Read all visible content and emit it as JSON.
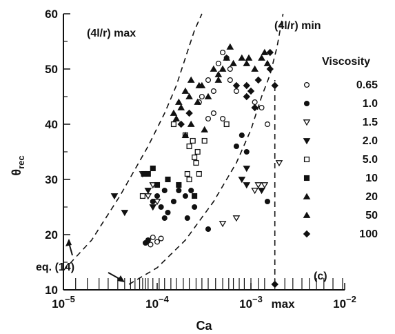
{
  "chart_data": {
    "type": "scatter",
    "title": "",
    "panel_label": "(c)",
    "xlabel": "Ca",
    "ylabel_main": "θ",
    "ylabel_sub": "rec",
    "xscale": "log",
    "xlim": [
      1e-05,
      0.01
    ],
    "ylim": [
      10,
      60
    ],
    "x_ticks": [
      {
        "value": 1e-05,
        "base": "10",
        "exp": "−5"
      },
      {
        "value": 0.0001,
        "base": "10",
        "exp": "−4"
      },
      {
        "value": 0.001,
        "base": "10",
        "exp": "−3"
      },
      {
        "value": 0.01,
        "base": "10",
        "exp": "−2"
      }
    ],
    "y_ticks": [
      10,
      20,
      30,
      40,
      50,
      60
    ],
    "extra_x_label": {
      "text": "max",
      "x": 0.0022
    },
    "annotations": [
      {
        "text": "(4l/r) max"
      },
      {
        "text": "(4l/r) min"
      },
      {
        "text": "eq. (14)"
      }
    ],
    "legend": {
      "title": "Viscosity",
      "placement": "right"
    },
    "curves": [
      {
        "name": "(4l/r) max",
        "style": "dashed",
        "points": [
          [
            1e-05,
            13.5
          ],
          [
            2e-05,
            19
          ],
          [
            4e-05,
            27
          ],
          [
            8e-05,
            36
          ],
          [
            0.00012,
            42
          ],
          [
            0.00016,
            47
          ],
          [
            0.0002,
            52
          ],
          [
            0.00025,
            57
          ],
          [
            0.0003,
            60
          ]
        ]
      },
      {
        "name": "(4l/r) min",
        "style": "dashed",
        "points": [
          [
            5e-05,
            11
          ],
          [
            0.0001,
            14
          ],
          [
            0.0002,
            19
          ],
          [
            0.0004,
            26
          ],
          [
            0.0007,
            33
          ],
          [
            0.001,
            39
          ],
          [
            0.0013,
            45
          ],
          [
            0.0016,
            49
          ],
          [
            0.0019,
            54
          ],
          [
            0.0022,
            60
          ]
        ]
      },
      {
        "name": "max",
        "style": "dashed",
        "points": [
          [
            0.0018,
            11
          ],
          [
            0.0018,
            48
          ]
        ]
      }
    ],
    "rug_x": [
      1.35e-05,
      1.8e-05,
      2.4e-05,
      3e-05,
      3.8e-05,
      4.5e-05,
      5.2e-05,
      5.8e-05,
      6.5e-05,
      7e-05,
      7.5e-05,
      8e-05,
      9e-05,
      0.000105,
      0.00012,
      0.00014,
      0.00016,
      0.00019,
      0.00022,
      0.00026,
      0.0003,
      0.00035,
      0.00042,
      0.0005,
      0.00058,
      0.00065,
      0.00075,
      0.00085,
      0.001,
      0.0012,
      0.0014,
      0.0018,
      0.0023,
      0.0028,
      0.0035,
      0.0042,
      0.005,
      0.006,
      0.0075,
      0.0095
    ],
    "series": [
      {
        "name": "0.65",
        "marker": "circle-open",
        "points": [
          [
            9e-05,
            19.5
          ],
          [
            0.0001,
            18.7
          ],
          [
            0.00011,
            19.3
          ],
          [
            8.5e-05,
            18.2
          ],
          [
            0.0003,
            45
          ],
          [
            0.00035,
            48
          ],
          [
            0.0004,
            46
          ],
          [
            0.00045,
            51
          ],
          [
            0.0005,
            53
          ],
          [
            0.00055,
            52
          ],
          [
            0.0006,
            50
          ],
          [
            0.0007,
            46
          ],
          [
            0.0005,
            41
          ],
          [
            0.0004,
            42
          ],
          [
            0.00035,
            41
          ],
          [
            0.0011,
            44
          ],
          [
            0.0013,
            43
          ],
          [
            0.0015,
            40
          ],
          [
            0.00028,
            44
          ],
          [
            0.0006,
            48
          ]
        ]
      },
      {
        "name": "1.0",
        "marker": "circle-filled",
        "points": [
          [
            7.5e-05,
            18.5
          ],
          [
            8e-05,
            19
          ],
          [
            0.0001,
            27
          ],
          [
            0.00011,
            25
          ],
          [
            0.00012,
            23
          ],
          [
            0.00013,
            24
          ],
          [
            0.00015,
            26
          ],
          [
            0.00017,
            28
          ],
          [
            0.0002,
            27
          ],
          [
            0.00023,
            28
          ],
          [
            9e-05,
            26
          ],
          [
            0.00021,
            23
          ],
          [
            0.00025,
            25
          ],
          [
            0.00035,
            21
          ],
          [
            0.0015,
            26
          ],
          [
            0.0007,
            36
          ],
          [
            0.0008,
            38
          ],
          [
            0.0009,
            35
          ],
          [
            0.00012,
            28
          ]
        ]
      },
      {
        "name": "1.5",
        "marker": "tri-down-open",
        "points": [
          [
            7e-05,
            31
          ],
          [
            8e-05,
            27
          ],
          [
            0.0001,
            26
          ],
          [
            0.0012,
            29
          ],
          [
            0.0014,
            29
          ],
          [
            0.002,
            33
          ],
          [
            0.0007,
            23
          ],
          [
            0.0005,
            22
          ],
          [
            0.0011,
            28
          ],
          [
            9e-05,
            29
          ]
        ]
      },
      {
        "name": "2.0",
        "marker": "tri-down-filled",
        "points": [
          [
            3.5e-05,
            27
          ],
          [
            4.5e-05,
            24
          ],
          [
            8e-05,
            28
          ],
          [
            0.0009,
            32
          ],
          [
            0.0013,
            28
          ],
          [
            0.0008,
            30
          ],
          [
            0.0009,
            29
          ],
          [
            9e-05,
            25
          ]
        ]
      },
      {
        "name": "5.0",
        "marker": "square-open",
        "points": [
          [
            7e-05,
            27
          ],
          [
            0.0002,
            38
          ],
          [
            0.00022,
            36
          ],
          [
            0.00025,
            34
          ],
          [
            0.00027,
            35
          ],
          [
            0.00024,
            37
          ],
          [
            0.00021,
            31
          ],
          [
            0.00028,
            31
          ],
          [
            0.00022,
            30
          ],
          [
            0.00032,
            37
          ],
          [
            0.00055,
            40
          ],
          [
            0.00026,
            33
          ],
          [
            0.00015,
            40
          ]
        ]
      },
      {
        "name": "10",
        "marker": "square-filled",
        "points": [
          [
            7.2e-05,
            31
          ],
          [
            8e-05,
            31
          ],
          [
            9e-05,
            32
          ],
          [
            0.0001,
            29
          ],
          [
            0.00013,
            30
          ],
          [
            0.00017,
            29
          ],
          [
            0.00025,
            27
          ]
        ]
      },
      {
        "name": "20",
        "marker": "tri-up-filled",
        "points": [
          [
            0.00015,
            42
          ],
          [
            0.00017,
            44
          ],
          [
            0.0002,
            46
          ],
          [
            0.00023,
            48
          ],
          [
            0.00027,
            44
          ],
          [
            0.0003,
            47
          ],
          [
            0.00035,
            45
          ],
          [
            0.00032,
            39
          ],
          [
            0.00045,
            49
          ],
          [
            0.0005,
            50
          ],
          [
            0.00055,
            52
          ],
          [
            0.00065,
            51
          ],
          [
            0.0008,
            52
          ],
          [
            0.00095,
            52
          ],
          [
            0.0011,
            50
          ],
          [
            0.0013,
            52
          ],
          [
            0.0015,
            51
          ]
        ]
      },
      {
        "name": "50",
        "marker": "tri-up-filled",
        "points": [
          [
            0.00018,
            43
          ],
          [
            0.00022,
            45
          ],
          [
            0.00028,
            47
          ],
          [
            0.0004,
            50
          ],
          [
            0.00045,
            48
          ],
          [
            0.0006,
            54
          ],
          [
            0.0009,
            51
          ],
          [
            0.0014,
            53
          ],
          [
            0.00023,
            40
          ],
          [
            0.0002,
            38
          ],
          [
            0.00016,
            41
          ]
        ]
      },
      {
        "name": "100",
        "marker": "diamond-filled",
        "points": [
          [
            0.00018,
            40
          ],
          [
            0.00022,
            42
          ],
          [
            0.0007,
            47
          ],
          [
            0.0009,
            45
          ],
          [
            0.001,
            46
          ],
          [
            0.0012,
            48
          ],
          [
            0.0016,
            50
          ],
          [
            0.0018,
            47
          ],
          [
            0.0016,
            53
          ],
          [
            0.0011,
            43
          ],
          [
            0.0009,
            47
          ],
          [
            0.0018,
            11
          ]
        ]
      }
    ]
  }
}
